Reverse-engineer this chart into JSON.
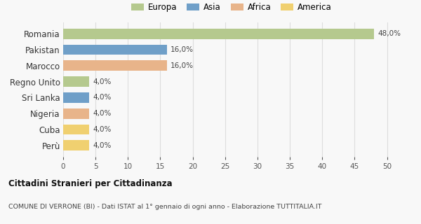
{
  "categories": [
    "Romania",
    "Pakistan",
    "Marocco",
    "Regno Unito",
    "Sri Lanka",
    "Nigeria",
    "Cuba",
    "Perù"
  ],
  "values": [
    48.0,
    16.0,
    16.0,
    4.0,
    4.0,
    4.0,
    4.0,
    4.0
  ],
  "colors": [
    "#b5c98e",
    "#6f9fc8",
    "#e8b48a",
    "#b5c98e",
    "#6f9fc8",
    "#e8b48a",
    "#f0d070",
    "#f0d070"
  ],
  "labels": [
    "48,0%",
    "16,0%",
    "16,0%",
    "4,0%",
    "4,0%",
    "4,0%",
    "4,0%",
    "4,0%"
  ],
  "xlim": [
    0,
    52
  ],
  "xticks": [
    0,
    5,
    10,
    15,
    20,
    25,
    30,
    35,
    40,
    45,
    50
  ],
  "legend_labels": [
    "Europa",
    "Asia",
    "Africa",
    "America"
  ],
  "legend_colors": [
    "#b5c98e",
    "#6f9fc8",
    "#e8b48a",
    "#f0d070"
  ],
  "title_main": "Cittadini Stranieri per Cittadinanza",
  "title_sub": "COMUNE DI VERRONE (BI) - Dati ISTAT al 1° gennaio di ogni anno - Elaborazione TUTTITALIA.IT",
  "bg_color": "#f8f8f8",
  "grid_color": "#dddddd"
}
